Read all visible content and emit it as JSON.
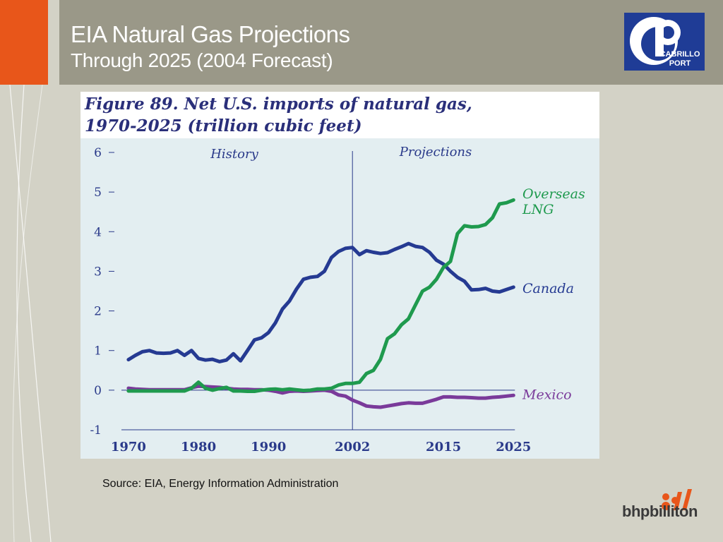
{
  "slide": {
    "title": "EIA Natural Gas Projections",
    "subtitle": "Through 2025 (2004 Forecast)",
    "source": "Source:  EIA, Energy Information Administration",
    "logo_text": [
      "CABRILLO",
      "PORT"
    ],
    "brand": "bhpbilliton",
    "colors": {
      "orange": "#e8561a",
      "header": "#9a9888",
      "background": "#d3d2c6",
      "logo_blue": "#1f3c96",
      "bhp_orange": "#e8561a"
    }
  },
  "chart_data": {
    "type": "line",
    "title": "Figure 89. Net U.S. imports of natural gas, 1970-2025 (trillion cubic feet)",
    "title_lines": [
      "Figure 89. Net U.S. imports of natural gas,",
      "1970-2025 (trillion cubic feet)"
    ],
    "xlabel": "",
    "ylabel": "",
    "xlim": [
      1969,
      2028
    ],
    "ylim": [
      -1,
      6
    ],
    "x_ticks": [
      1970,
      1980,
      1990,
      2002,
      2015,
      2025
    ],
    "y_ticks": [
      -1,
      0,
      1,
      2,
      3,
      4,
      5,
      6
    ],
    "divider_year": 2002,
    "region_labels": {
      "history": "History",
      "projections": "Projections"
    },
    "grid": false,
    "legend": "inline-right",
    "x": [
      1970,
      1971,
      1972,
      1973,
      1974,
      1975,
      1976,
      1977,
      1978,
      1979,
      1980,
      1981,
      1982,
      1983,
      1984,
      1985,
      1986,
      1987,
      1988,
      1989,
      1990,
      1991,
      1992,
      1993,
      1994,
      1995,
      1996,
      1997,
      1998,
      1999,
      2000,
      2001,
      2002,
      2003,
      2004,
      2005,
      2006,
      2007,
      2008,
      2009,
      2010,
      2011,
      2012,
      2013,
      2014,
      2015,
      2016,
      2017,
      2018,
      2019,
      2020,
      2021,
      2022,
      2023,
      2024,
      2025
    ],
    "series": [
      {
        "name": "Canada",
        "color": "#253a92",
        "values": [
          0.77,
          0.88,
          0.97,
          1.0,
          0.94,
          0.93,
          0.94,
          1.0,
          0.88,
          1.0,
          0.8,
          0.76,
          0.78,
          0.72,
          0.76,
          0.92,
          0.74,
          1.0,
          1.27,
          1.32,
          1.45,
          1.7,
          2.05,
          2.25,
          2.55,
          2.8,
          2.85,
          2.87,
          3.0,
          3.35,
          3.5,
          3.58,
          3.6,
          3.42,
          3.52,
          3.48,
          3.45,
          3.47,
          3.55,
          3.62,
          3.7,
          3.63,
          3.6,
          3.48,
          3.28,
          3.18,
          3.0,
          2.85,
          2.75,
          2.53,
          2.54,
          2.57,
          2.5,
          2.48,
          2.54,
          2.6
        ]
      },
      {
        "name": "Overseas LNG",
        "color": "#1f9a4e",
        "values": [
          -0.02,
          -0.02,
          -0.02,
          -0.02,
          -0.02,
          -0.02,
          -0.02,
          -0.02,
          -0.02,
          0.05,
          0.2,
          0.05,
          0.0,
          0.04,
          0.07,
          -0.02,
          -0.02,
          -0.03,
          -0.03,
          0.0,
          0.02,
          0.03,
          0.01,
          0.03,
          0.01,
          -0.01,
          0.0,
          0.03,
          0.03,
          0.05,
          0.13,
          0.17,
          0.17,
          0.2,
          0.42,
          0.5,
          0.78,
          1.3,
          1.42,
          1.65,
          1.8,
          2.15,
          2.5,
          2.6,
          2.8,
          3.1,
          3.25,
          3.95,
          4.15,
          4.12,
          4.13,
          4.18,
          4.35,
          4.7,
          4.73,
          4.8
        ]
      },
      {
        "name": "Mexico",
        "color": "#7a3a9a",
        "values": [
          0.05,
          0.03,
          0.02,
          0.01,
          0.01,
          0.01,
          0.01,
          0.01,
          0.01,
          0.06,
          0.1,
          0.09,
          0.08,
          0.07,
          0.05,
          0.03,
          0.02,
          0.02,
          0.01,
          0.01,
          0.0,
          -0.03,
          -0.07,
          -0.03,
          -0.02,
          -0.03,
          -0.02,
          -0.01,
          0.0,
          -0.03,
          -0.12,
          -0.15,
          -0.25,
          -0.32,
          -0.4,
          -0.42,
          -0.43,
          -0.4,
          -0.37,
          -0.34,
          -0.32,
          -0.33,
          -0.33,
          -0.28,
          -0.23,
          -0.17,
          -0.17,
          -0.18,
          -0.18,
          -0.19,
          -0.2,
          -0.2,
          -0.18,
          -0.17,
          -0.15,
          -0.13
        ]
      }
    ],
    "series_labels": [
      {
        "lines": [
          "Overseas",
          "LNG"
        ],
        "color": "#1f9a4e"
      },
      {
        "lines": [
          "Canada"
        ],
        "color": "#253a92"
      },
      {
        "lines": [
          "Mexico"
        ],
        "color": "#7a3a9a"
      }
    ]
  }
}
